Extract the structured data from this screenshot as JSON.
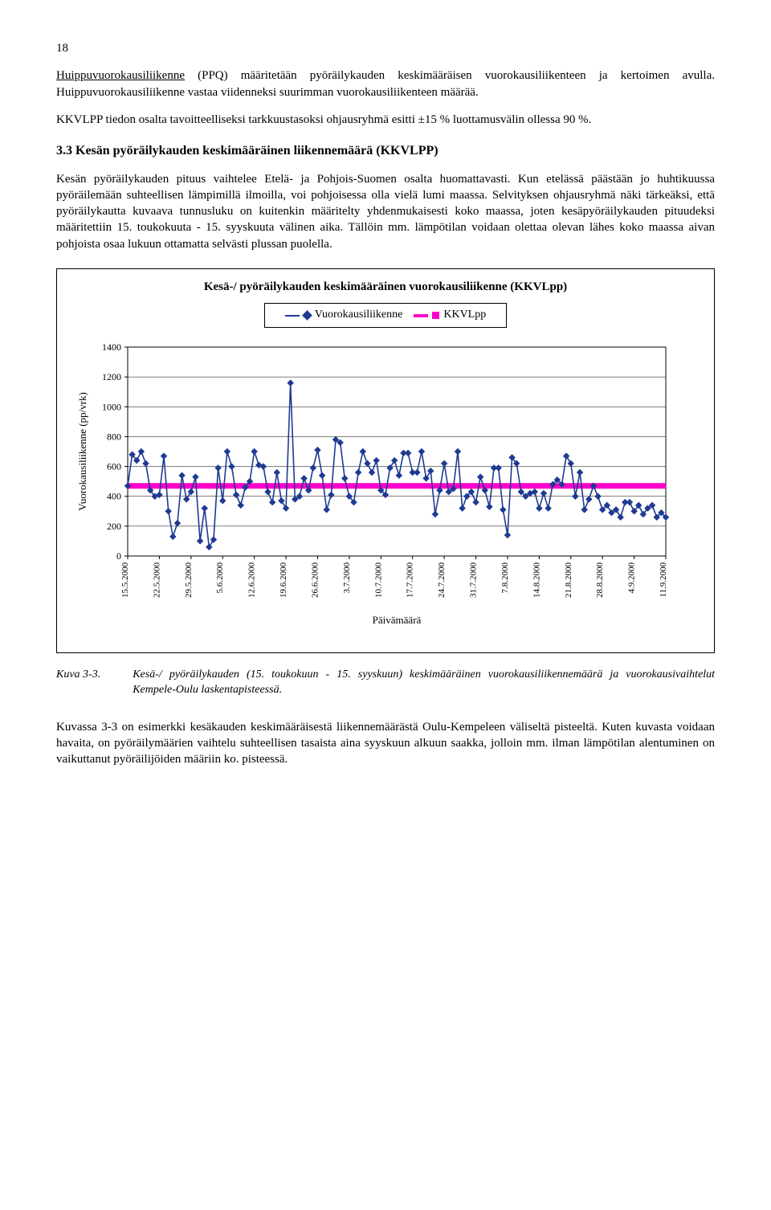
{
  "page_number": "18",
  "para1_pre": "Huippuvuorokausiliikenne",
  "para1_post": " (PPQ) määritetään pyöräilykauden keskimääräisen vuorokausiliikenteen ja kertoimen avulla. Huippuvuorokausiliikenne vastaa viidenneksi suurimman vuorokausiliikenteen määrää.",
  "para2": "KKVLPP tiedon osalta tavoitteelliseksi tarkkuustasoksi ohjausryhmä esitti ±15 % luottamusvälin ollessa 90 %.",
  "section": "3.3  Kesän pyöräilykauden keskimääräinen liikennemäärä (KKVLPP)",
  "para3": "Kesän pyöräilykauden pituus vaihtelee Etelä- ja Pohjois-Suomen osalta huomattavasti. Kun etelässä päästään jo huhtikuussa pyöräilemään suhteellisen lämpimillä ilmoilla, voi pohjoisessa olla vielä lumi maassa. Selvityksen ohjausryhmä näki tärkeäksi, että pyöräilykautta kuvaava tunnusluku on kuitenkin määritelty yhdenmukaisesti koko maassa, joten kesäpyöräilykauden pituudeksi määritettiin 15. toukokuuta - 15. syyskuuta välinen aika. Tällöin mm. lämpötilan voidaan olettaa olevan lähes koko maassa aivan pohjoista osaa lukuun ottamatta selvästi plussan puolella.",
  "chart": {
    "title": "Kesä-/ pyöräilykauden keskimääräinen vuorokausiliikenne (KKVLpp)",
    "legend1": "Vuorokausiliikenne",
    "legend2": "KKVLpp",
    "ylabel": "Vuorokausiliikenne (pp/vrk)",
    "xlabel": "Päivämäärä",
    "ylim": [
      0,
      1400
    ],
    "ytick_step": 200,
    "yticks": [
      "0",
      "200",
      "400",
      "600",
      "800",
      "1000",
      "1200",
      "1400"
    ],
    "kkvlpp": 470,
    "line_color": "#1f3a93",
    "marker_fill": "#1f3a93",
    "kkvl_color": "#ff00cc",
    "grid_color": "#000000",
    "bg_color": "#ffffff",
    "x_labels": [
      "15.5.2000",
      "22.5.2000",
      "29.5.2000",
      "5.6.2000",
      "12.6.2000",
      "19.6.2000",
      "26.6.2000",
      "3.7.2000",
      "10.7.2000",
      "17.7.2000",
      "24.7.2000",
      "31.7.2000",
      "7.8.2000",
      "14.8.2000",
      "21.8.2000",
      "28.8.2000",
      "4.9.2000",
      "11.9.2000"
    ],
    "values": [
      470,
      680,
      640,
      700,
      620,
      440,
      400,
      410,
      670,
      300,
      130,
      220,
      540,
      380,
      430,
      530,
      100,
      320,
      60,
      110,
      590,
      370,
      700,
      600,
      410,
      340,
      460,
      500,
      700,
      610,
      600,
      430,
      360,
      560,
      370,
      320,
      1160,
      380,
      400,
      520,
      440,
      590,
      710,
      540,
      310,
      410,
      780,
      760,
      520,
      400,
      360,
      560,
      700,
      620,
      560,
      640,
      440,
      410,
      590,
      640,
      540,
      690,
      690,
      560,
      560,
      700,
      520,
      570,
      280,
      440,
      620,
      430,
      450,
      700,
      320,
      400,
      430,
      360,
      530,
      440,
      330,
      590,
      590,
      310,
      140,
      660,
      620,
      430,
      400,
      420,
      430,
      320,
      420,
      320,
      480,
      510,
      480,
      670,
      620,
      400,
      560,
      310,
      380,
      470,
      400,
      310,
      340,
      290,
      310,
      260,
      360,
      360,
      300,
      340,
      280,
      320,
      340,
      260,
      290,
      260
    ]
  },
  "caption_label": "Kuva 3-3.",
  "caption_text": "Kesä-/ pyöräilykauden (15. toukokuun - 15. syyskuun) keskimääräinen vuorokausiliikennemäärä ja vuorokausivaihtelut Kempele-Oulu laskentapisteessä.",
  "para4": "Kuvassa 3-3 on esimerkki kesäkauden keskimääräisestä liikennemäärästä Oulu-Kempeleen väliseltä pisteeltä. Kuten kuvasta voidaan havaita, on pyöräilymäärien vaihtelu suhteellisen tasaista aina syyskuun alkuun saakka, jolloin mm. ilman lämpötilan alentuminen on vaikuttanut pyöräilijöiden määriin ko. pisteessä."
}
